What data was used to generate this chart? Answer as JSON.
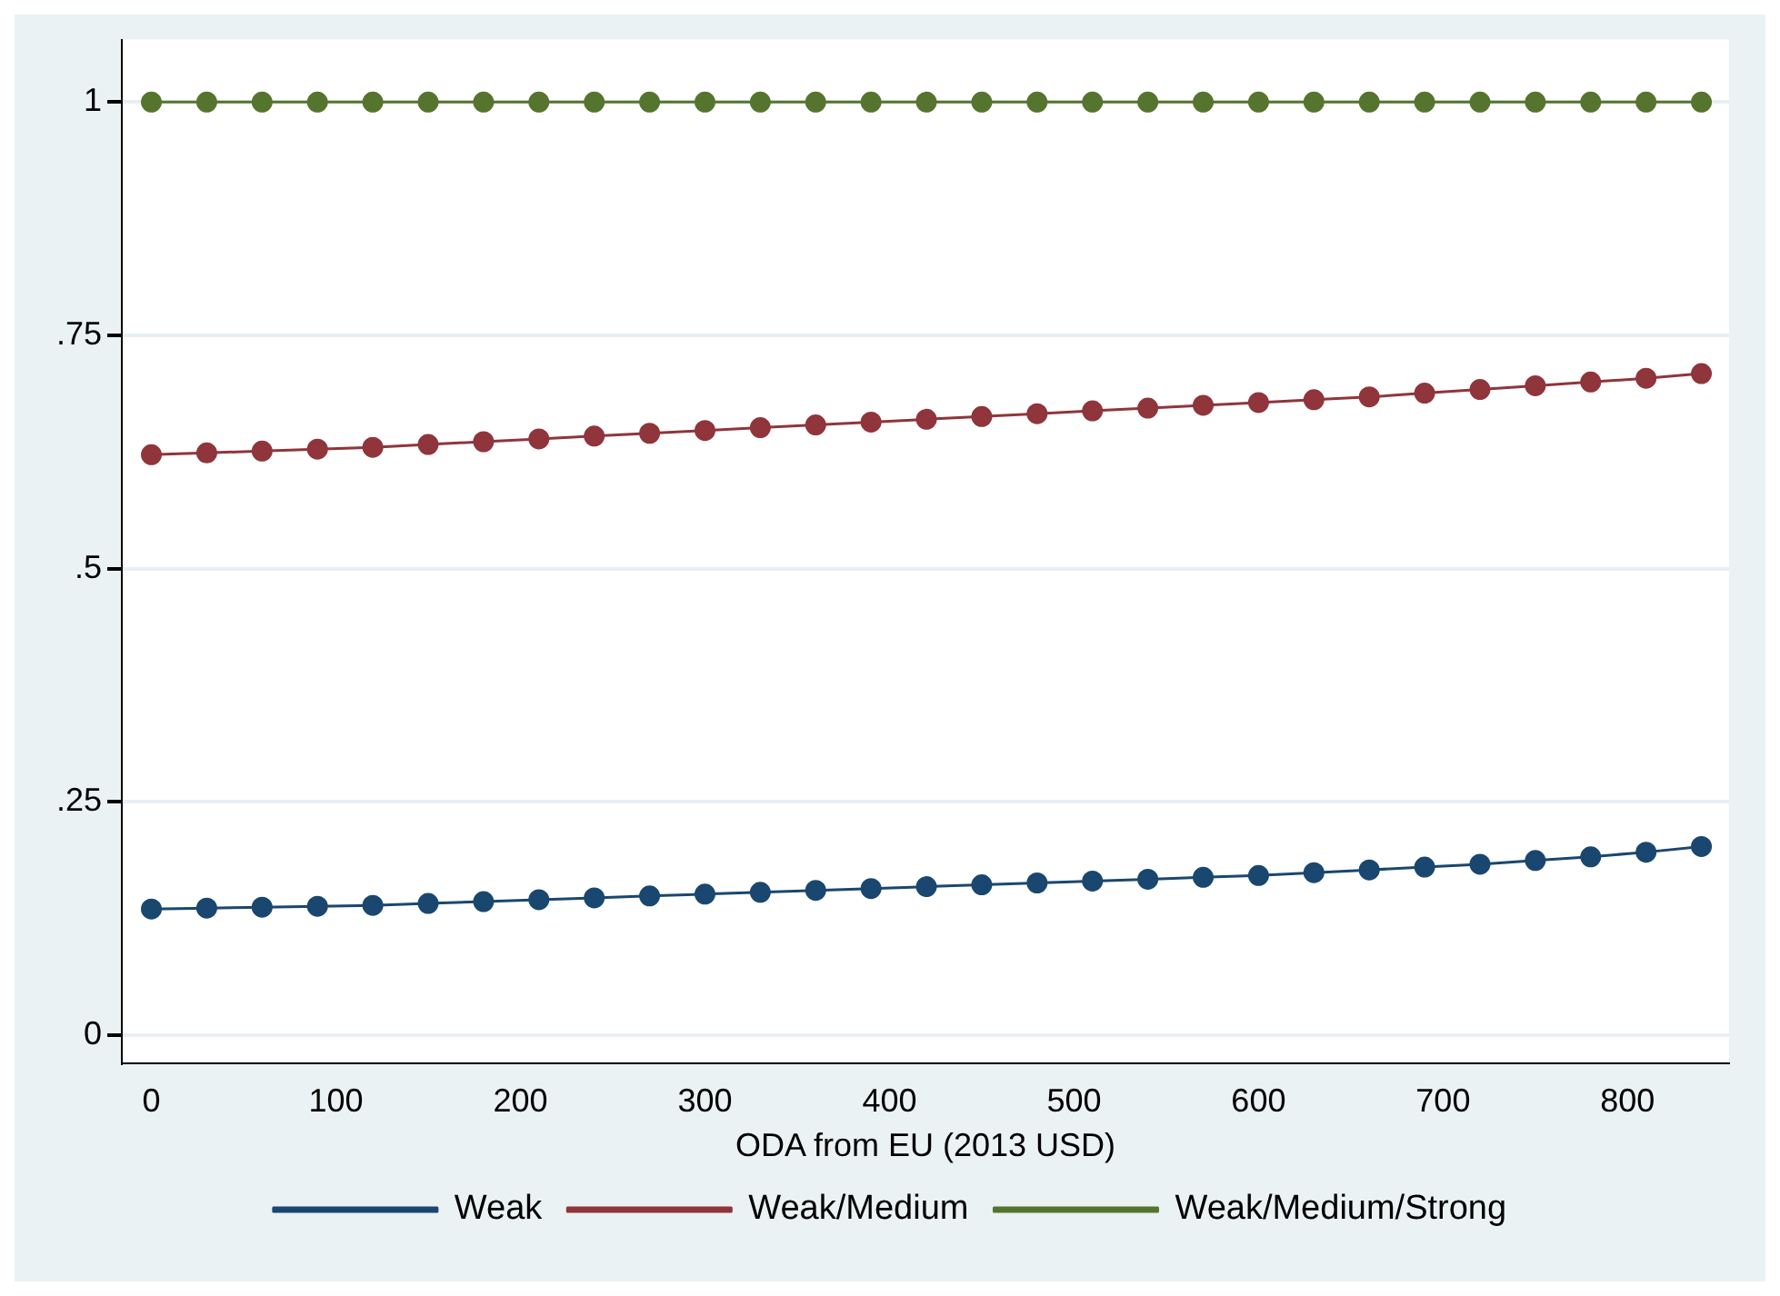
{
  "chart_data": {
    "type": "line",
    "xlabel": "ODA from EU (2013 USD)",
    "x": [
      0,
      30,
      60,
      90,
      120,
      150,
      180,
      210,
      240,
      270,
      300,
      330,
      360,
      390,
      420,
      450,
      480,
      510,
      540,
      570,
      600,
      630,
      660,
      690,
      720,
      750,
      780,
      810,
      840
    ],
    "series": [
      {
        "name": "Weak",
        "color": "#1a476f",
        "values": [
          0.135,
          0.136,
          0.137,
          0.138,
          0.139,
          0.141,
          0.143,
          0.145,
          0.147,
          0.149,
          0.151,
          0.153,
          0.155,
          0.157,
          0.159,
          0.161,
          0.163,
          0.165,
          0.167,
          0.169,
          0.171,
          0.174,
          0.177,
          0.18,
          0.183,
          0.187,
          0.191,
          0.196,
          0.202
        ]
      },
      {
        "name": "Weak/Medium",
        "color": "#90353b",
        "values": [
          0.622,
          0.624,
          0.626,
          0.628,
          0.63,
          0.633,
          0.636,
          0.639,
          0.642,
          0.645,
          0.648,
          0.651,
          0.654,
          0.657,
          0.66,
          0.663,
          0.666,
          0.669,
          0.672,
          0.675,
          0.678,
          0.681,
          0.684,
          0.688,
          0.692,
          0.696,
          0.7,
          0.704,
          0.709
        ]
      },
      {
        "name": "Weak/Medium/Strong",
        "color": "#55752f",
        "values": [
          1,
          1,
          1,
          1,
          1,
          1,
          1,
          1,
          1,
          1,
          1,
          1,
          1,
          1,
          1,
          1,
          1,
          1,
          1,
          1,
          1,
          1,
          1,
          1,
          1,
          1,
          1,
          1,
          1
        ]
      }
    ],
    "xlim": [
      -16,
      855
    ],
    "xticks": [
      0,
      100,
      200,
      300,
      400,
      500,
      600,
      700,
      800
    ],
    "ylim": [
      -0.03,
      1.067
    ],
    "yticks": [
      {
        "value": 0,
        "label": "0"
      },
      {
        "value": 0.25,
        "label": ".25"
      },
      {
        "value": 0.5,
        "label": ".5"
      },
      {
        "value": 0.75,
        "label": ".75"
      },
      {
        "value": 1,
        "label": "1"
      }
    ],
    "grid": "y",
    "legend": "bottom",
    "marker": "circle",
    "line_style": "solid"
  }
}
